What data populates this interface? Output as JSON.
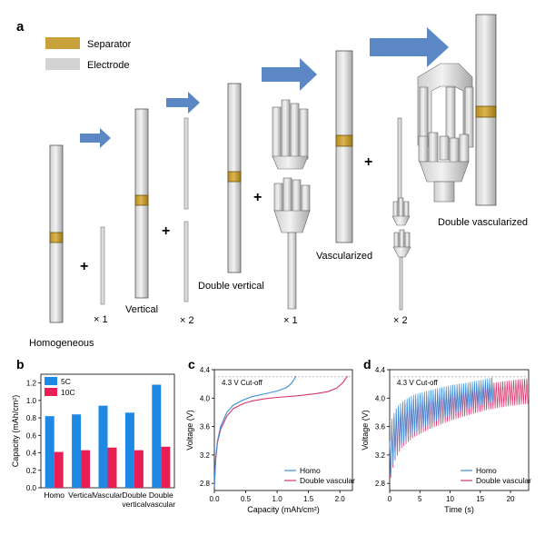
{
  "panel_a": {
    "label": "a",
    "legend": [
      {
        "name": "Separator",
        "color": "#C9A13A"
      },
      {
        "name": "Electrode",
        "color": "#D3D3D3"
      }
    ],
    "captions": {
      "homogeneous": "Homogeneous",
      "vertical": "Vertical",
      "double_vertical": "Double vertical",
      "vascularized": "Vascularized",
      "double_vascularized": "Double vascularized"
    },
    "multipliers": {
      "m1": "× 1",
      "m2": "× 2",
      "m3": "× 1",
      "m4": "× 2"
    },
    "plus": "+",
    "colors": {
      "arrow": "#5B87C5"
    }
  },
  "chart_data": [
    {
      "panel": "b",
      "type": "bar",
      "ylabel": "Capacity (mAh/cm²)",
      "ylim": [
        0,
        1.3
      ],
      "yticks": [
        "0.0",
        "0.2",
        "0.4",
        "0.6",
        "0.8",
        "1.0",
        "1.2"
      ],
      "categories": [
        "Homo",
        "Vertical",
        "Vascular",
        "Double\nvertical",
        "Double\nvascular"
      ],
      "category_lines": [
        [
          "Homo"
        ],
        [
          "Vertical"
        ],
        [
          "Vascular"
        ],
        [
          "Double",
          "vertical"
        ],
        [
          "Double",
          "vascular"
        ]
      ],
      "category_colors": [
        "#777777",
        "#000000",
        "#000000",
        "#000000",
        "#E8193C"
      ],
      "series": [
        {
          "name": "5C",
          "color": "#1E88E5",
          "values": [
            0.82,
            0.84,
            0.94,
            0.86,
            1.18
          ]
        },
        {
          "name": "10C",
          "color": "#E91E55",
          "values": [
            0.41,
            0.43,
            0.46,
            0.43,
            0.47
          ]
        }
      ],
      "legend": "top-left"
    },
    {
      "panel": "c",
      "type": "line",
      "xlabel": "Capacity (mAh/cm²)",
      "ylabel": "Voltage (V)",
      "xlim": [
        0,
        2.2
      ],
      "ylim": [
        2.7,
        4.4
      ],
      "xticks": [
        "0.0",
        "0.5",
        "1.0",
        "1.5",
        "2.0"
      ],
      "yticks": [
        "2.8",
        "3.2",
        "3.6",
        "4.0",
        "4.4"
      ],
      "annotation": "4.3 V Cut-off",
      "cutoff": 4.3,
      "series": [
        {
          "name": "Homo",
          "color": "#3B8FD9",
          "x": [
            0,
            0.02,
            0.05,
            0.1,
            0.2,
            0.3,
            0.45,
            0.6,
            0.8,
            1.0,
            1.15,
            1.22,
            1.27,
            1.3
          ],
          "y": [
            2.75,
            3.15,
            3.4,
            3.6,
            3.8,
            3.9,
            3.97,
            4.02,
            4.06,
            4.1,
            4.15,
            4.2,
            4.26,
            4.31
          ]
        },
        {
          "name": "Double vascular",
          "color": "#D6336C",
          "x": [
            0,
            0.02,
            0.05,
            0.1,
            0.2,
            0.3,
            0.45,
            0.6,
            0.8,
            1.0,
            1.3,
            1.6,
            1.8,
            1.95,
            2.05,
            2.12
          ],
          "y": [
            2.75,
            3.12,
            3.38,
            3.56,
            3.75,
            3.85,
            3.92,
            3.96,
            3.99,
            4.01,
            4.03,
            4.06,
            4.09,
            4.14,
            4.22,
            4.31
          ]
        }
      ],
      "legend": "bottom-right"
    },
    {
      "panel": "d",
      "type": "line",
      "xlabel": "Time (s)",
      "ylabel": "Voltage (V)",
      "xlim": [
        0,
        23
      ],
      "ylim": [
        2.7,
        4.4
      ],
      "xticks": [
        "0",
        "5",
        "10",
        "15",
        "20"
      ],
      "yticks": [
        "2.8",
        "3.2",
        "3.6",
        "4.0",
        "4.4"
      ],
      "annotation": "4.3 V Cut-off",
      "cutoff": 4.3,
      "series": [
        {
          "name": "Homo",
          "color": "#3B8FD9",
          "end_time": 17.2,
          "x": [
            0,
            0.3,
            1,
            2,
            4,
            7,
            10,
            13,
            16,
            17.2
          ],
          "upper": [
            3.4,
            3.7,
            3.85,
            3.95,
            4.05,
            4.12,
            4.18,
            4.22,
            4.27,
            4.3
          ],
          "lower": [
            2.8,
            3.0,
            3.2,
            3.35,
            3.5,
            3.65,
            3.75,
            3.85,
            3.92,
            3.95
          ]
        },
        {
          "name": "Double vascular",
          "color": "#D6336C",
          "end_time": 23,
          "x": [
            0,
            0.3,
            1,
            2,
            4,
            7,
            10,
            13,
            16,
            19,
            23
          ],
          "upper": [
            3.35,
            3.65,
            3.8,
            3.9,
            3.98,
            4.05,
            4.1,
            4.15,
            4.2,
            4.24,
            4.28
          ],
          "lower": [
            2.78,
            2.95,
            3.15,
            3.3,
            3.45,
            3.58,
            3.68,
            3.76,
            3.83,
            3.88,
            3.92
          ]
        }
      ],
      "legend": "bottom-right"
    }
  ],
  "panel_labels": {
    "b": "b",
    "c": "c",
    "d": "d"
  }
}
